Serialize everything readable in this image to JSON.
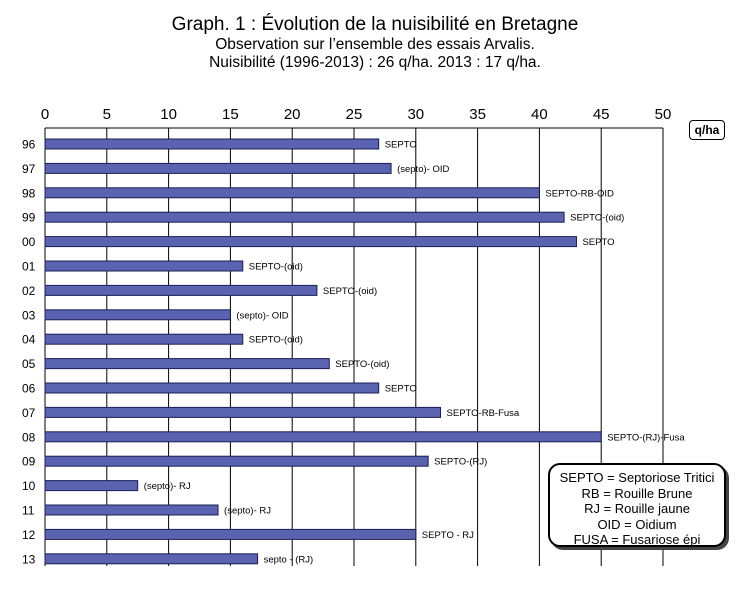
{
  "title": {
    "line1": "Graph. 1 : Évolution de la nuisibilité en Bretagne",
    "line2": "Observation sur l’ensemble des essais Arvalis.",
    "line3": "Nuisibilité (1996-2013) : 26 q/ha.  2013 : 17 q/ha."
  },
  "unit": "q/ha",
  "legend": [
    "SEPTO = Septoriose Tritici",
    "RB = Rouille Brune",
    "RJ = Rouille jaune",
    "OID = Oidium",
    "FUSA = Fusariose épi"
  ],
  "colors": {
    "bar": "#5a63b0",
    "bar_border": "#1a1f55",
    "grid": "#000000"
  },
  "chart_data": {
    "type": "bar",
    "orientation": "horizontal",
    "categories": [
      "96",
      "97",
      "98",
      "99",
      "00",
      "01",
      "02",
      "03",
      "04",
      "05",
      "06",
      "07",
      "08",
      "09",
      "10",
      "11",
      "12",
      "13"
    ],
    "values": [
      27,
      28,
      40,
      42,
      43,
      16,
      22,
      15,
      16,
      23,
      27,
      32,
      45,
      31,
      7.5,
      14,
      30,
      17.2
    ],
    "bar_labels": [
      "SEPTO",
      "(septo)- OID",
      "SEPTO-RB-OID",
      "SEPTO-(oid)",
      "SEPTO",
      "SEPTO-(oid)",
      "SEPTO-(oid)",
      "(septo)- OID",
      "SEPTO-(oid)",
      "SEPTO-(oid)",
      "SEPTO",
      "SEPTO-RB-Fusa",
      "SEPTO-(RJ)-Fusa",
      "SEPTO-(RJ)",
      "(septo)- RJ",
      "(septo)- RJ",
      "SEPTO - RJ",
      "septo - (RJ)"
    ],
    "xlim": [
      0,
      50
    ],
    "xticks": [
      0,
      5,
      10,
      15,
      20,
      25,
      30,
      35,
      40,
      45,
      50
    ],
    "xaxis_position": "top",
    "grid": true
  }
}
